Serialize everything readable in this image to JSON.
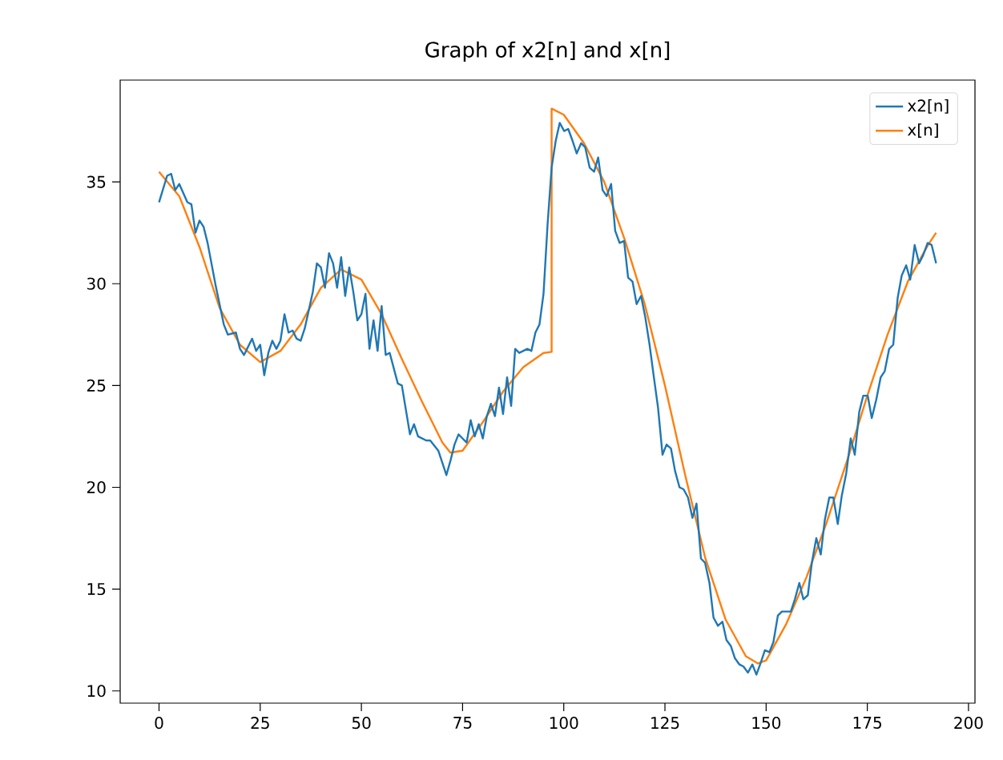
{
  "chart_data": {
    "type": "line",
    "title": "Graph of x2[n] and x[n]",
    "xlim": [
      -9.6,
      201.6
    ],
    "ylim": [
      9.4,
      40.0
    ],
    "xticks": [
      0,
      25,
      50,
      75,
      100,
      125,
      150,
      175,
      200
    ],
    "yticks": [
      10,
      15,
      20,
      25,
      30,
      35
    ],
    "grid": false,
    "legend": "top right",
    "marker": "none",
    "line_style": "solid",
    "series": [
      {
        "name": "x2[n]",
        "color": "#1f77b4",
        "x": [
          0,
          2,
          3,
          4,
          5,
          7,
          8,
          9,
          10,
          11,
          12,
          14,
          16,
          17,
          19,
          20,
          21,
          22,
          23,
          24,
          25,
          26,
          27,
          28,
          29,
          30,
          31,
          32,
          33,
          34,
          35,
          36,
          37,
          38,
          39,
          40,
          41,
          42,
          43,
          44,
          45,
          46,
          47,
          48,
          49,
          50,
          51,
          52,
          53,
          54,
          55,
          56,
          57,
          59,
          60,
          61,
          62,
          63,
          64,
          66,
          67,
          69,
          70,
          71,
          72,
          73,
          74,
          75,
          76,
          77,
          78,
          79,
          80,
          81,
          82,
          83,
          84,
          85,
          86,
          87,
          88,
          89,
          91,
          92,
          93,
          94,
          95,
          96,
          97,
          98,
          99,
          100.1,
          101.1,
          102.2,
          103.2,
          104.3,
          105.3,
          106.4,
          107.5,
          108.5,
          109.6,
          110.6,
          111.7,
          112.7,
          113.8,
          114.9,
          115.9,
          117.0,
          118.0,
          119.1,
          120.1,
          121.2,
          122.2,
          123.3,
          124.4,
          125.4,
          126.5,
          127.5,
          128.6,
          129.6,
          130.7,
          131.8,
          132.8,
          133.9,
          134.9,
          136.0,
          137.0,
          138.1,
          139.2,
          140.2,
          141.3,
          142.3,
          143.4,
          144.4,
          145.5,
          146.6,
          147.6,
          148.7,
          149.7,
          150.8,
          151.8,
          152.9,
          153.9,
          155.0,
          156.1,
          157.1,
          158.2,
          159.2,
          160.3,
          161.3,
          162.4,
          163.5,
          164.5,
          165.6,
          166.6,
          167.7,
          168.7,
          169.8,
          170.9,
          171.9,
          173.0,
          174.0,
          175.1,
          176.1,
          177.2,
          178.3,
          179.3,
          180.4,
          181.4,
          182.5,
          183.5,
          184.6,
          185.6,
          186.7,
          187.8,
          188.8,
          189.9,
          190.9,
          192.0
        ],
        "values": [
          34.0,
          35.3,
          35.4,
          34.6,
          34.9,
          34.0,
          33.9,
          32.5,
          33.1,
          32.8,
          32.0,
          29.9,
          28.0,
          27.5,
          27.6,
          26.8,
          26.5,
          26.9,
          27.3,
          26.7,
          27.0,
          25.5,
          26.6,
          27.2,
          26.8,
          27.2,
          28.5,
          27.6,
          27.7,
          27.3,
          27.2,
          27.8,
          28.7,
          29.6,
          31.0,
          30.8,
          29.8,
          31.5,
          31.0,
          29.8,
          31.3,
          29.4,
          30.8,
          29.6,
          28.2,
          28.5,
          29.5,
          26.8,
          28.2,
          26.7,
          28.9,
          26.5,
          26.6,
          25.1,
          25.0,
          23.8,
          22.6,
          23.1,
          22.5,
          22.3,
          22.3,
          21.8,
          21.2,
          20.6,
          21.3,
          22.1,
          22.6,
          22.4,
          22.2,
          23.3,
          22.5,
          23.1,
          22.4,
          23.5,
          24.1,
          23.5,
          24.9,
          23.6,
          25.4,
          24.0,
          26.8,
          26.6,
          26.8,
          26.7,
          27.6,
          28.0,
          29.5,
          32.9,
          35.7,
          37.0,
          37.9,
          37.5,
          37.6,
          37.0,
          36.4,
          36.9,
          36.7,
          35.7,
          35.5,
          36.2,
          34.6,
          34.3,
          34.9,
          32.6,
          32.0,
          32.1,
          30.3,
          30.1,
          29.0,
          29.4,
          28.4,
          27.0,
          25.5,
          23.9,
          21.6,
          22.1,
          21.9,
          20.8,
          20.0,
          19.9,
          19.5,
          18.5,
          19.2,
          16.5,
          16.3,
          15.3,
          13.6,
          13.2,
          13.4,
          12.5,
          12.2,
          11.6,
          11.3,
          11.2,
          10.9,
          11.3,
          10.8,
          11.4,
          12.0,
          11.9,
          12.4,
          13.7,
          13.9,
          13.9,
          13.9,
          14.5,
          15.3,
          14.5,
          14.7,
          16.3,
          17.5,
          16.7,
          18.4,
          19.5,
          19.5,
          18.2,
          19.6,
          20.7,
          22.4,
          21.6,
          23.7,
          24.5,
          24.5,
          23.4,
          24.3,
          25.4,
          25.7,
          26.8,
          27.0,
          29.3,
          30.4,
          30.9,
          30.2,
          31.9,
          31.0,
          31.4,
          32.0,
          31.9,
          31.0
        ]
      },
      {
        "name": "x[n]",
        "color": "#ff7f0e",
        "x": [
          0,
          5,
          10,
          15,
          20,
          25,
          30,
          35,
          40,
          45,
          50,
          55,
          60,
          65,
          70,
          72,
          75,
          80,
          85,
          90,
          95,
          97,
          97,
          100,
          105,
          110,
          115,
          120,
          125,
          130,
          135,
          140,
          145,
          148,
          150,
          155,
          160,
          165,
          170,
          175,
          180,
          185,
          190,
          192
        ],
        "values": [
          35.5,
          34.3,
          31.8,
          28.8,
          27.0,
          26.15,
          26.7,
          28.0,
          29.8,
          30.7,
          30.2,
          28.5,
          26.3,
          24.2,
          22.2,
          21.7,
          21.8,
          23.2,
          24.7,
          25.9,
          26.6,
          26.65,
          38.6,
          38.3,
          36.9,
          35.0,
          32.2,
          29.0,
          25.0,
          20.6,
          16.5,
          13.5,
          11.7,
          11.35,
          11.5,
          13.3,
          15.6,
          18.3,
          21.3,
          24.5,
          27.5,
          30.1,
          31.9,
          32.5
        ]
      }
    ]
  }
}
